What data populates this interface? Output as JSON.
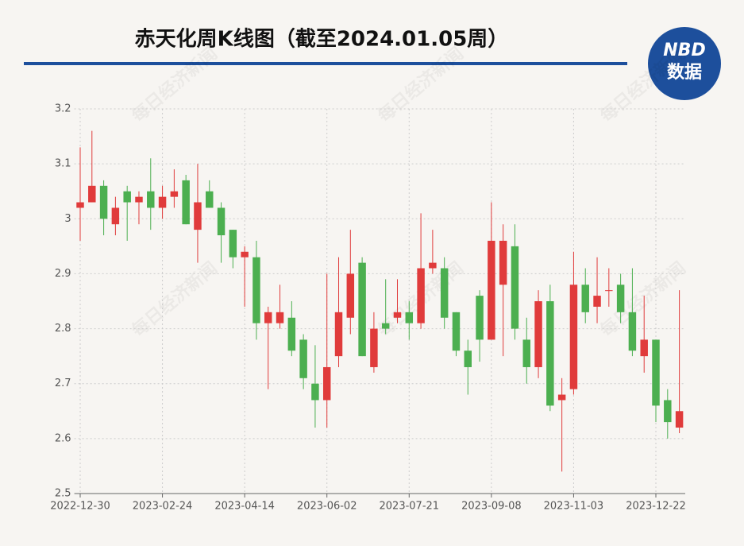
{
  "chart_data": {
    "type": "candlestick",
    "title": "赤天化周K线图（截至2024.01.05周）",
    "logo": {
      "top": "NBD",
      "bottom": "数据"
    },
    "watermark": "每日经济新闻",
    "categories": [
      "2022-12-30",
      null,
      null,
      null,
      null,
      null,
      null,
      "2023-02-24",
      null,
      null,
      null,
      null,
      null,
      null,
      "2023-04-14",
      null,
      null,
      null,
      null,
      null,
      null,
      "2023-06-02",
      null,
      null,
      null,
      null,
      null,
      null,
      "2023-07-21",
      null,
      null,
      null,
      null,
      null,
      null,
      "2023-09-08",
      null,
      null,
      null,
      null,
      null,
      null,
      "2023-11-03",
      null,
      null,
      null,
      null,
      null,
      null,
      "2023-12-22",
      null,
      null
    ],
    "open": [
      3.02,
      3.03,
      3.06,
      2.99,
      3.05,
      3.03,
      3.05,
      3.02,
      3.04,
      3.07,
      2.98,
      3.05,
      3.02,
      2.98,
      2.93,
      2.93,
      2.81,
      2.81,
      2.82,
      2.78,
      2.7,
      2.67,
      2.75,
      2.82,
      2.92,
      2.73,
      2.81,
      2.82,
      2.83,
      2.81,
      2.91,
      2.91,
      2.83,
      2.76,
      2.86,
      2.78,
      2.88,
      2.95,
      2.78,
      2.73,
      2.85,
      2.67,
      2.69,
      2.88,
      2.84,
      2.87,
      2.88,
      2.83,
      2.75,
      2.78,
      2.67,
      2.62
    ],
    "high": [
      3.13,
      3.16,
      3.07,
      3.04,
      3.06,
      3.05,
      3.11,
      3.06,
      3.09,
      3.08,
      3.1,
      3.07,
      3.03,
      2.98,
      2.95,
      2.96,
      2.84,
      2.88,
      2.85,
      2.79,
      2.77,
      2.9,
      2.93,
      2.98,
      2.93,
      2.83,
      2.89,
      2.89,
      2.85,
      3.01,
      2.98,
      2.93,
      2.83,
      2.78,
      2.87,
      3.03,
      2.99,
      2.99,
      2.82,
      2.87,
      2.88,
      2.71,
      2.94,
      2.91,
      2.93,
      2.91,
      2.9,
      2.91,
      2.86,
      2.78,
      2.69,
      2.87
    ],
    "low": [
      2.96,
      3.03,
      2.97,
      2.97,
      2.96,
      2.99,
      2.98,
      3.0,
      3.02,
      2.99,
      2.92,
      3.02,
      2.92,
      2.91,
      2.84,
      2.78,
      2.69,
      2.8,
      2.75,
      2.69,
      2.62,
      2.62,
      2.73,
      2.79,
      2.75,
      2.72,
      2.79,
      2.81,
      2.78,
      2.8,
      2.9,
      2.8,
      2.75,
      2.68,
      2.74,
      2.78,
      2.75,
      2.78,
      2.7,
      2.71,
      2.65,
      2.54,
      2.68,
      2.81,
      2.81,
      2.84,
      2.81,
      2.75,
      2.72,
      2.63,
      2.6,
      2.61
    ],
    "close": [
      3.03,
      3.06,
      3.0,
      3.02,
      3.03,
      3.04,
      3.02,
      3.04,
      3.05,
      2.99,
      3.03,
      3.02,
      2.97,
      2.93,
      2.94,
      2.81,
      2.83,
      2.83,
      2.76,
      2.71,
      2.67,
      2.73,
      2.83,
      2.9,
      2.75,
      2.8,
      2.8,
      2.83,
      2.81,
      2.91,
      2.92,
      2.82,
      2.76,
      2.73,
      2.78,
      2.96,
      2.96,
      2.8,
      2.73,
      2.85,
      2.66,
      2.68,
      2.88,
      2.83,
      2.86,
      2.87,
      2.83,
      2.76,
      2.78,
      2.66,
      2.63,
      2.65
    ],
    "up_color": "#e03b3b",
    "down_color": "#4caf50",
    "ylim": [
      2.5,
      3.2
    ],
    "yticks": [
      2.5,
      2.6,
      2.7,
      2.8,
      2.9,
      3,
      3.1,
      3.2
    ],
    "grid": true
  }
}
